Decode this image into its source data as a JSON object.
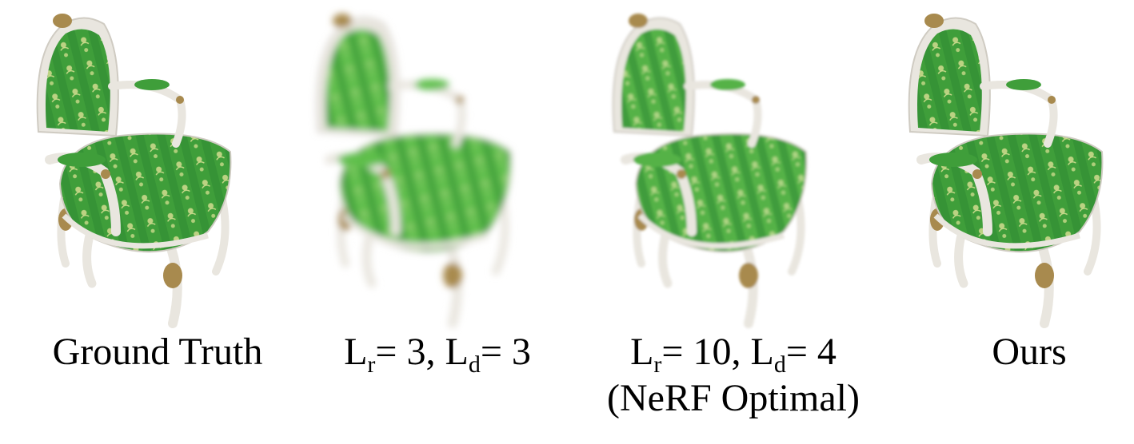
{
  "figure": {
    "panels": [
      {
        "id": "ground-truth",
        "caption_text": "Ground Truth",
        "caption_line2": "",
        "texture": "sharp-damask",
        "fabric_color": "#3f9e3a",
        "pattern_color": "#c9d98a",
        "frame_color": "#e9e6df"
      },
      {
        "id": "low-freq",
        "caption_parts": {
          "L1": "L",
          "s1": "r",
          "v1": "= 3, ",
          "L2": "L",
          "s2": "d",
          "v2": "= 3"
        },
        "caption_line2": "",
        "texture": "very-blurry",
        "fabric_color": "#5fbf4c",
        "pattern_color": "#9fd27a",
        "frame_color": "#e9e6df"
      },
      {
        "id": "nerf-optimal",
        "caption_parts": {
          "L1": "L",
          "s1": "r",
          "v1": "= 10, ",
          "L2": "L",
          "s2": "d",
          "v2": "= 4"
        },
        "caption_line2": "(NeRF Optimal)",
        "texture": "slightly-blurry",
        "fabric_color": "#55b247",
        "pattern_color": "#b7d98a",
        "frame_color": "#e9e6df"
      },
      {
        "id": "ours",
        "caption_text": "Ours",
        "caption_line2": "",
        "texture": "sharp-damask",
        "fabric_color": "#3f9e3a",
        "pattern_color": "#c9d98a",
        "frame_color": "#e9e6df"
      }
    ]
  }
}
